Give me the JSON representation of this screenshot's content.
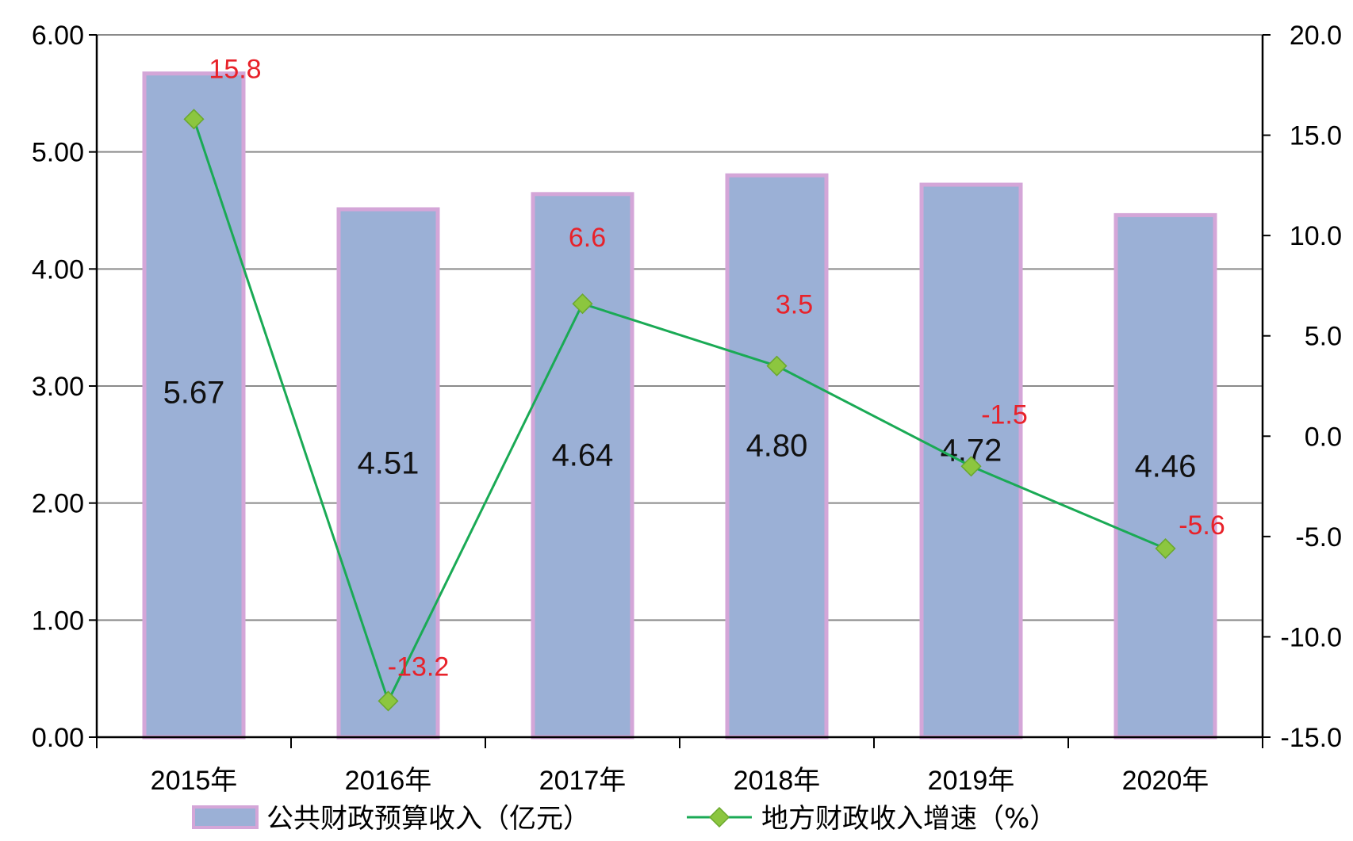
{
  "chart_data": {
    "type": "bar+line",
    "categories": [
      "2015年",
      "2016年",
      "2017年",
      "2018年",
      "2019年",
      "2020年"
    ],
    "series": [
      {
        "name": "公共财政预算收入（亿元）",
        "type": "bar",
        "axis": "left",
        "values": [
          5.67,
          4.51,
          4.64,
          4.8,
          4.72,
          4.46
        ],
        "labels": [
          "5.67",
          "4.51",
          "4.64",
          "4.80",
          "4.72",
          "4.46"
        ],
        "color": "#9bb0d6",
        "border_color": "#d4a6d8"
      },
      {
        "name": "地方财政收入增速（%）",
        "type": "line",
        "axis": "right",
        "values": [
          15.8,
          -13.2,
          6.6,
          3.5,
          -1.5,
          -5.6
        ],
        "labels": [
          "15.8",
          "-13.2",
          "6.6",
          "3.5",
          "-1.5",
          "-5.6"
        ],
        "color": "#1aaa55",
        "marker_color": "#8cc63f",
        "label_color": "#e8222a"
      }
    ],
    "y_left": {
      "range": [
        0,
        6
      ],
      "ticks": [
        0,
        1,
        2,
        3,
        4,
        5,
        6
      ],
      "tick_labels": [
        "0.00",
        "1.00",
        "2.00",
        "3.00",
        "4.00",
        "5.00",
        "6.00"
      ]
    },
    "y_right": {
      "range": [
        -15,
        20
      ],
      "ticks": [
        -15,
        -10,
        -5,
        0,
        5,
        10,
        15,
        20
      ],
      "tick_labels": [
        "-15.0",
        "-10.0",
        "-5.0",
        "0.0",
        "5.0",
        "10.0",
        "15.0",
        "20.0"
      ]
    },
    "grid": true,
    "legend_position": "bottom"
  }
}
